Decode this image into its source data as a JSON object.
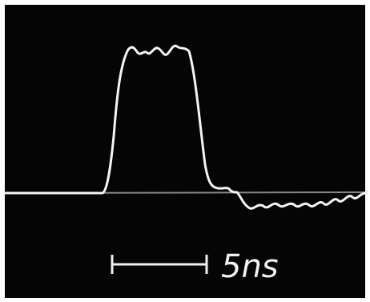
{
  "scale_bar": {
    "label": "5ns"
  }
}
